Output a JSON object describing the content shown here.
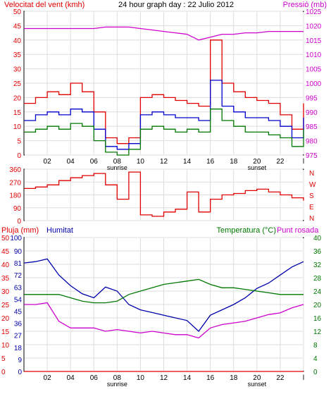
{
  "title": "24 hour graph day : 22 Julio 2012",
  "colors": {
    "wind": "#e00000",
    "gust": "#e00000",
    "avg_wind": "#0000cc",
    "wind_low": "#007700",
    "pressure": "#cc00cc",
    "direction": "#e00000",
    "rain": "#e00000",
    "humidity": "#0000aa",
    "temperature": "#007700",
    "dewpoint": "#cc00cc",
    "grid": "#dddddd",
    "frame": "#000000"
  },
  "x_ticks": [
    "02",
    "04",
    "06",
    "08",
    "10",
    "12",
    "14",
    "16",
    "18",
    "20",
    "22",
    "l"
  ],
  "sunrise_label": "sunrise",
  "sunset_label": "sunset",
  "chart_data": [
    {
      "type": "line",
      "title": "24 hour graph day : 22 Julio 2012",
      "ylabel_left": "Velocitat del vent (kmh)",
      "ylabel_right": "Pressió (mb)",
      "ylim_left": [
        0,
        50
      ],
      "ylim_right": [
        975,
        1025
      ],
      "left_ticks": [
        "50",
        "45",
        "40",
        "35",
        "30",
        "25",
        "20",
        "15",
        "10",
        "5",
        "0"
      ],
      "right_ticks": [
        "1025",
        "1020",
        "1015",
        "1010",
        "1005",
        "1000",
        "995",
        "990",
        "985",
        "980",
        "975"
      ],
      "x": [
        0,
        1,
        2,
        3,
        4,
        5,
        6,
        7,
        8,
        9,
        10,
        11,
        12,
        13,
        14,
        15,
        16,
        17,
        18,
        19,
        20,
        21,
        22,
        23,
        24
      ],
      "series": [
        {
          "key": "gust",
          "values": [
            18,
            20,
            22,
            21,
            25,
            22,
            15,
            6,
            4,
            6,
            20,
            21,
            20,
            19,
            18,
            17,
            40,
            25,
            22,
            20,
            19,
            18,
            14,
            9,
            18
          ]
        },
        {
          "key": "avg_wind",
          "values": [
            12,
            14,
            15,
            14,
            16,
            15,
            9,
            3,
            2,
            4,
            14,
            15,
            14,
            13,
            13,
            12,
            26,
            17,
            15,
            13,
            13,
            12,
            10,
            6,
            13
          ]
        },
        {
          "key": "wind_low",
          "values": [
            8,
            9,
            10,
            9,
            11,
            10,
            5,
            1,
            0,
            2,
            9,
            10,
            9,
            8,
            9,
            8,
            16,
            12,
            10,
            8,
            8,
            7,
            6,
            3,
            9
          ]
        },
        {
          "key": "pressure",
          "values": [
            1019,
            1019,
            1019,
            1019,
            1019,
            1019,
            1019,
            1019.5,
            1019.5,
            1019.5,
            1019,
            1018.5,
            1018,
            1017.5,
            1017,
            1015,
            1016,
            1017,
            1017,
            1017.5,
            1017.5,
            1018,
            1018,
            1018,
            1018
          ]
        }
      ]
    },
    {
      "type": "line",
      "ylim": [
        0,
        360
      ],
      "left_ticks": [
        "360",
        "270",
        "180",
        "90",
        "0"
      ],
      "right_labels": [
        "N",
        "W",
        "S",
        "E",
        "N"
      ],
      "x": [
        0,
        1,
        2,
        3,
        4,
        5,
        6,
        7,
        8,
        9,
        10,
        11,
        12,
        13,
        14,
        15,
        16,
        17,
        18,
        19,
        20,
        21,
        22,
        23,
        24
      ],
      "series": [
        {
          "key": "direction",
          "values": [
            225,
            235,
            250,
            280,
            300,
            315,
            330,
            250,
            150,
            340,
            40,
            30,
            60,
            80,
            200,
            60,
            150,
            180,
            190,
            210,
            220,
            200,
            180,
            160,
            140
          ]
        }
      ]
    },
    {
      "type": "line",
      "ylabel_left_1": "Pluja (mm)",
      "ylabel_left_2": "Humitat",
      "ylabel_right": "Temperatura (°C)",
      "ylabel_right_2": "Punt rosada",
      "rain_ticks": [
        "0",
        "5",
        "10",
        "15",
        "20",
        "25",
        "30",
        "35",
        "40",
        "45",
        "50"
      ],
      "hum_ticks": [
        "0",
        "9",
        "18",
        "27",
        "36",
        "45",
        "54",
        "63",
        "72",
        "81",
        "90",
        "100"
      ],
      "temp_ticks": [
        "0",
        "4",
        "8",
        "12",
        "16",
        "20",
        "24",
        "28",
        "32",
        "36",
        "40"
      ],
      "ylim_humidity": [
        0,
        100
      ],
      "ylim_temperature": [
        0,
        40
      ],
      "x": [
        0,
        1,
        2,
        3,
        4,
        5,
        6,
        7,
        8,
        9,
        10,
        11,
        12,
        13,
        14,
        15,
        16,
        17,
        18,
        19,
        20,
        21,
        22,
        23,
        24
      ],
      "series": [
        {
          "key": "rain",
          "values": [
            0,
            0,
            0,
            0,
            0,
            0,
            0,
            0,
            0,
            0,
            0,
            0,
            0,
            0,
            0,
            0,
            0,
            0,
            0,
            0,
            0,
            0,
            0,
            0,
            0
          ]
        },
        {
          "key": "humidity",
          "values": [
            81,
            82,
            84,
            72,
            64,
            58,
            55,
            63,
            60,
            50,
            46,
            44,
            42,
            40,
            38,
            30,
            42,
            46,
            50,
            55,
            62,
            66,
            72,
            78,
            82
          ]
        },
        {
          "key": "temperature",
          "values": [
            23,
            23,
            23,
            23,
            22,
            21,
            20.5,
            20.5,
            21,
            23,
            24,
            25,
            26,
            26.5,
            27,
            27.5,
            26,
            25,
            25,
            24.5,
            24,
            23.5,
            23,
            23,
            23
          ]
        },
        {
          "key": "dewpoint",
          "values": [
            20,
            20,
            20.5,
            15,
            13,
            13,
            13,
            12,
            12.5,
            12,
            11.5,
            12,
            11.5,
            11,
            11,
            10,
            13,
            14,
            14.5,
            15,
            16,
            17,
            17.5,
            19,
            20
          ]
        }
      ]
    }
  ]
}
